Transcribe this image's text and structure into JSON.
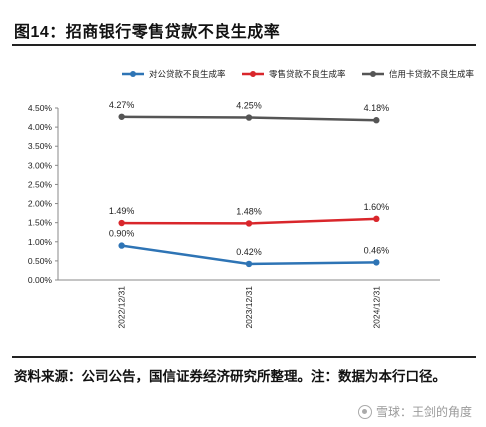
{
  "header": {
    "figure_title": "图14：招商银行零售贷款不良生成率"
  },
  "footer": {
    "source_note": "资料来源：公司公告，国信证券经济研究所整理。注：数据为本行口径。",
    "watermark": "雪球：王剑的角度"
  },
  "colors": {
    "blue": "#2e74b5",
    "red": "#d9262b",
    "gray": "#555555"
  },
  "chart_data": {
    "type": "line",
    "title": "",
    "xlabel": "",
    "ylabel": "",
    "categories": [
      "2022/12/31",
      "2023/12/31",
      "2024/12/31"
    ],
    "ylim": [
      0,
      4.5
    ],
    "ytick_step": 0.5,
    "ytick_labels": [
      "0.00%",
      "0.50%",
      "1.00%",
      "1.50%",
      "2.00%",
      "2.50%",
      "3.00%",
      "3.50%",
      "4.00%",
      "4.50%"
    ],
    "legend_position": "top",
    "grid": false,
    "series": [
      {
        "name": "对公贷款不良生成率",
        "color": "#2e74b5",
        "values": [
          0.9,
          0.42,
          0.46
        ],
        "labels": [
          "0.90%",
          "0.42%",
          "0.46%"
        ]
      },
      {
        "name": "零售贷款不良生成率",
        "color": "#d9262b",
        "values": [
          1.49,
          1.48,
          1.6
        ],
        "labels": [
          "1.49%",
          "1.48%",
          "1.60%"
        ]
      },
      {
        "name": "信用卡贷款不良生成率",
        "color": "#555555",
        "values": [
          4.27,
          4.25,
          4.18
        ],
        "labels": [
          "4.27%",
          "4.25%",
          "4.18%"
        ]
      }
    ]
  }
}
